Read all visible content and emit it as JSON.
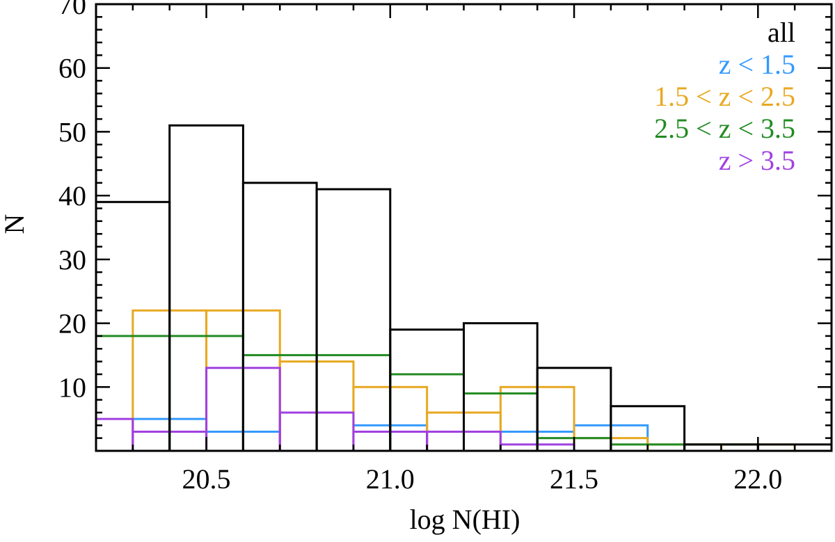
{
  "chart_data": {
    "type": "histogram",
    "xlabel": "log N(HI)",
    "ylabel": "N",
    "xlim": [
      20.2,
      22.2
    ],
    "ylim": [
      0,
      70
    ],
    "x_ticks": [
      20.5,
      21.0,
      21.5,
      22.0
    ],
    "x_tick_labels": [
      "20.5",
      "21.0",
      "21.5",
      "22.0"
    ],
    "y_ticks": [
      10,
      20,
      30,
      40,
      50,
      60,
      70
    ],
    "y_tick_labels": [
      "10",
      "20",
      "30",
      "40",
      "50",
      "60",
      "70"
    ],
    "grid": false,
    "legend_position": "top-right",
    "series": [
      {
        "name": "all",
        "color": "#000000",
        "bin_edges": [
          20.2,
          20.4,
          20.6,
          20.8,
          21.0,
          21.2,
          21.4,
          21.6,
          21.8,
          22.0,
          22.2
        ],
        "counts": [
          39,
          51,
          42,
          41,
          19,
          20,
          13,
          7,
          1,
          1
        ]
      },
      {
        "name": "z < 1.5",
        "color": "#3399ff",
        "bin_edges": [
          20.3,
          20.5,
          20.7,
          20.9,
          21.1,
          21.3,
          21.5,
          21.7
        ],
        "counts": [
          5,
          3,
          0,
          4,
          0,
          3,
          4
        ]
      },
      {
        "name": "1.5 < z < 2.5",
        "color": "#e8a820",
        "bin_edges": [
          20.3,
          20.5,
          20.7,
          20.9,
          21.1,
          21.3,
          21.5,
          21.7,
          21.9,
          22.1
        ],
        "counts": [
          22,
          22,
          14,
          10,
          6,
          10,
          2,
          1,
          1
        ]
      },
      {
        "name": "2.5 < z < 3.5",
        "color": "#228b22",
        "bin_edges": [
          20.2,
          20.4,
          20.6,
          20.8,
          21.0,
          21.2,
          21.4,
          21.6,
          21.8,
          22.0
        ],
        "counts": [
          18,
          18,
          15,
          15,
          12,
          9,
          2,
          1,
          1
        ]
      },
      {
        "name": "z > 3.5",
        "color": "#a040e0",
        "bin_edges": [
          20.2,
          20.3,
          20.5,
          20.7,
          20.9,
          21.1,
          21.3,
          21.5
        ],
        "counts": [
          5,
          3,
          13,
          6,
          3,
          3,
          1
        ]
      }
    ]
  }
}
